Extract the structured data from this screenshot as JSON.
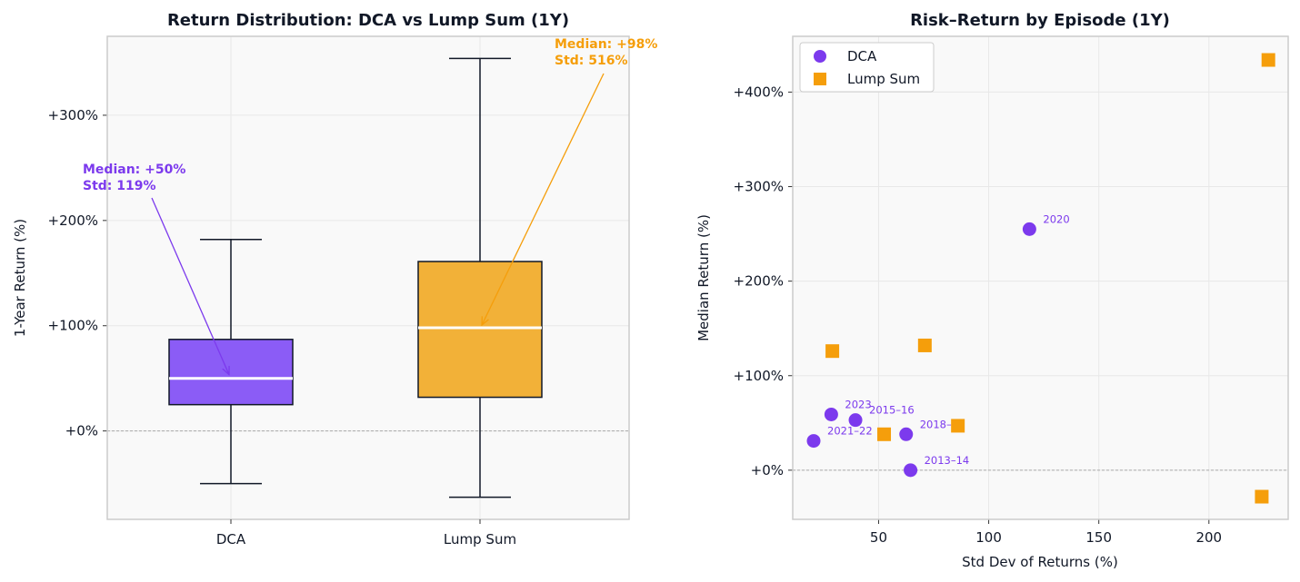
{
  "colors": {
    "dca": "#7c3aed",
    "lump": "#f59e0b",
    "dca_fill": "#8b5cf6",
    "lump_fill": "#f2b138",
    "frame": "#cccccc",
    "bg": "#f9f9f9",
    "dark": "#111827"
  },
  "chart_data": [
    {
      "type": "box",
      "title": "Return Distribution: DCA vs Lump Sum (1Y)",
      "ylabel": "1-Year Return (%)",
      "xlabel": "",
      "ylim": [
        -84,
        375
      ],
      "yticks": [
        0,
        100,
        200,
        300
      ],
      "ytick_labels": [
        "+0%",
        "+100%",
        "+200%",
        "+300%"
      ],
      "grid": true,
      "categories": [
        "DCA",
        "Lump Sum"
      ],
      "boxes": [
        {
          "name": "DCA",
          "whisker_low": -50,
          "q1": 25,
          "median": 50,
          "q3": 87,
          "whisker_high": 182
        },
        {
          "name": "Lump Sum",
          "whisker_low": -63,
          "q1": 32,
          "median": 98,
          "q3": 161,
          "whisker_high": 354
        }
      ],
      "annotations": [
        {
          "series": "DCA",
          "line1": "Median: +50%",
          "line2": "Std: 119%"
        },
        {
          "series": "Lump Sum",
          "line1": "Median: +98%",
          "line2": "Std: 516%"
        }
      ]
    },
    {
      "type": "scatter",
      "title": "Risk–Return by Episode (1Y)",
      "xlabel": "Std Dev of Returns (%)",
      "ylabel": "Median Return (%)",
      "xlim": [
        11,
        236
      ],
      "ylim": [
        -52,
        459
      ],
      "xticks": [
        50,
        100,
        150,
        200
      ],
      "yticks": [
        0,
        100,
        200,
        300,
        400
      ],
      "ytick_labels": [
        "+0%",
        "+100%",
        "+200%",
        "+300%",
        "+400%"
      ],
      "grid": true,
      "legend_position": "top-left",
      "series": [
        {
          "name": "DCA",
          "marker": "circle",
          "points": [
            {
              "x": 118.5,
              "y": 255,
              "label": "2020"
            },
            {
              "x": 28.5,
              "y": 59,
              "label": "2023"
            },
            {
              "x": 39.5,
              "y": 53,
              "label": "2015–16"
            },
            {
              "x": 20.5,
              "y": 31,
              "label": "2021–22"
            },
            {
              "x": 62.5,
              "y": 38,
              "label": "2018–19"
            },
            {
              "x": 64.5,
              "y": 0,
              "label": "2013–14"
            }
          ]
        },
        {
          "name": "Lump Sum",
          "marker": "square",
          "points": [
            {
              "x": 227,
              "y": 434
            },
            {
              "x": 29,
              "y": 126
            },
            {
              "x": 71,
              "y": 132
            },
            {
              "x": 86,
              "y": 47
            },
            {
              "x": 52.5,
              "y": 38
            },
            {
              "x": 224,
              "y": -28
            }
          ]
        }
      ]
    }
  ]
}
